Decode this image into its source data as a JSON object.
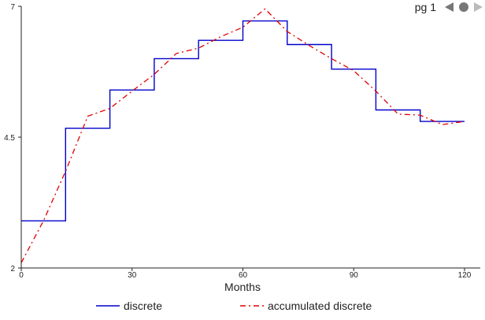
{
  "pager": {
    "label": "pg 1",
    "prev_icon": "triangle-left-icon",
    "next_icon": "triangle-right-icon",
    "colors": {
      "prev": "#777777",
      "next": "#bbbbbb"
    }
  },
  "chart_data": {
    "type": "line",
    "xlabel": "Months",
    "ylabel": "",
    "title": "",
    "xlim": [
      0,
      120
    ],
    "ylim": [
      2,
      7
    ],
    "x_ticks": [
      0,
      30,
      60,
      90,
      120
    ],
    "y_ticks": [
      2,
      4.5,
      7
    ],
    "grid": false,
    "legend_position": "bottom",
    "series": [
      {
        "name": "discrete",
        "color": "#0000cc",
        "style": "step",
        "x": [
          0,
          12,
          12,
          24,
          24,
          36,
          36,
          48,
          48,
          60,
          60,
          72,
          72,
          84,
          84,
          96,
          96,
          108,
          108,
          120
        ],
        "values": [
          2.9,
          2.9,
          4.67,
          4.67,
          5.4,
          5.4,
          6.0,
          6.0,
          6.35,
          6.35,
          6.72,
          6.72,
          6.27,
          6.27,
          5.8,
          5.8,
          5.02,
          5.02,
          4.8,
          4.8
        ]
      },
      {
        "name": "accumulated discrete",
        "color": "#e00000",
        "style": "dash-dot",
        "x": [
          0,
          6,
          12,
          18,
          24,
          30,
          36,
          42,
          48,
          54,
          60,
          66,
          72,
          78,
          84,
          90,
          96,
          102,
          108,
          114,
          120
        ],
        "values": [
          2.1,
          2.9,
          3.85,
          4.9,
          5.05,
          5.38,
          5.7,
          6.1,
          6.2,
          6.42,
          6.6,
          6.95,
          6.52,
          6.25,
          6.0,
          5.77,
          5.38,
          4.94,
          4.92,
          4.74,
          4.8
        ]
      }
    ]
  }
}
